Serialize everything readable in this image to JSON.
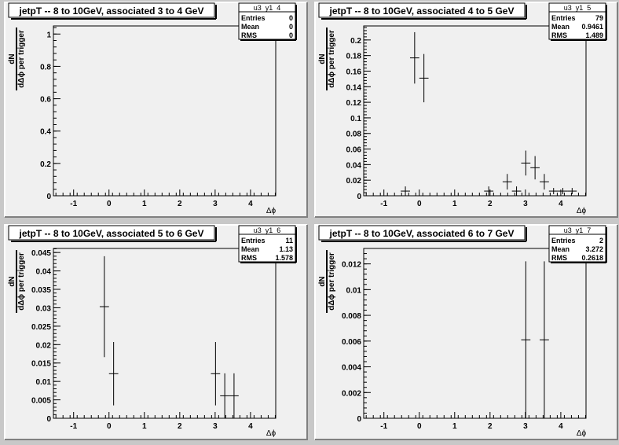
{
  "chart_data": [
    {
      "type": "scatter",
      "title": "jetpT -- 8 to 10GeV, associated 3 to 4 GeV",
      "xlabel": "Δϕ",
      "ylabel_num": "dN",
      "ylabel_den": "dΔϕ per trigger",
      "xlim": [
        -1.5708,
        4.7124
      ],
      "ylim": [
        0,
        1.05
      ],
      "xticks": [
        -1,
        0,
        1,
        2,
        3,
        4
      ],
      "yticks": [
        0,
        0.2,
        0.4,
        0.6,
        0.8,
        1
      ],
      "stats": {
        "name": "u3_y1_4",
        "entries": "0",
        "mean": "0",
        "rms": "0"
      },
      "bin_width": 0.2618,
      "points": []
    },
    {
      "type": "scatter",
      "title": "jetpT -- 8 to 10GeV, associated 4 to 5 GeV",
      "xlabel": "Δϕ",
      "ylabel_num": "dN",
      "ylabel_den": "dΔϕ per trigger",
      "xlim": [
        -1.5708,
        4.7124
      ],
      "ylim": [
        0,
        0.218
      ],
      "xticks": [
        -1,
        0,
        1,
        2,
        3,
        4
      ],
      "yticks": [
        0,
        0.02,
        0.04,
        0.06,
        0.08,
        0.1,
        0.12,
        0.14,
        0.16,
        0.18,
        0.2
      ],
      "stats": {
        "name": "u3_y1_5",
        "entries": "79",
        "mean": "0.9461",
        "rms": "1.489"
      },
      "bin_width": 0.2618,
      "points": [
        {
          "x": -0.393,
          "y": 0.006,
          "err": 0.006
        },
        {
          "x": -0.131,
          "y": 0.177,
          "err": 0.033
        },
        {
          "x": 0.131,
          "y": 0.151,
          "err": 0.031
        },
        {
          "x": 1.963,
          "y": 0.006,
          "err": 0.006
        },
        {
          "x": 2.487,
          "y": 0.018,
          "err": 0.01
        },
        {
          "x": 2.749,
          "y": 0.006,
          "err": 0.006
        },
        {
          "x": 3.011,
          "y": 0.042,
          "err": 0.016
        },
        {
          "x": 3.272,
          "y": 0.036,
          "err": 0.015
        },
        {
          "x": 3.534,
          "y": 0.018,
          "err": 0.01
        },
        {
          "x": 3.796,
          "y": 0.006,
          "err": 0.004
        },
        {
          "x": 4.058,
          "y": 0.006,
          "err": 0.004
        },
        {
          "x": 4.32,
          "y": 0.006,
          "err": 0.004
        }
      ]
    },
    {
      "type": "scatter",
      "title": "jetpT -- 8 to 10GeV, associated 5 to 6 GeV",
      "xlabel": "Δϕ",
      "ylabel_num": "dN",
      "ylabel_den": "dΔϕ per trigger",
      "xlim": [
        -1.5708,
        4.7124
      ],
      "ylim": [
        0,
        0.0461
      ],
      "xticks": [
        -1,
        0,
        1,
        2,
        3,
        4
      ],
      "yticks": [
        0,
        0.005,
        0.01,
        0.015,
        0.02,
        0.025,
        0.03,
        0.035,
        0.04,
        0.045
      ],
      "stats": {
        "name": "u3_y1_6",
        "entries": "11",
        "mean": "1.13",
        "rms": "1.578"
      },
      "bin_width": 0.2618,
      "points": [
        {
          "x": -0.131,
          "y": 0.0303,
          "err": 0.0137
        },
        {
          "x": 0.131,
          "y": 0.0121,
          "err": 0.0086
        },
        {
          "x": 3.011,
          "y": 0.0121,
          "err": 0.0086
        },
        {
          "x": 3.272,
          "y": 0.0061,
          "err": 0.0061
        },
        {
          "x": 3.534,
          "y": 0.0061,
          "err": 0.0061
        }
      ]
    },
    {
      "type": "scatter",
      "title": "jetpT -- 8 to 10GeV, associated 6 to 7 GeV",
      "xlabel": "Δϕ",
      "ylabel_num": "dN",
      "ylabel_den": "dΔϕ per trigger",
      "xlim": [
        -1.5708,
        4.7124
      ],
      "ylim": [
        0,
        0.0132
      ],
      "xticks": [
        -1,
        0,
        1,
        2,
        3,
        4
      ],
      "yticks": [
        0,
        0.002,
        0.004,
        0.006,
        0.008,
        0.01,
        0.012
      ],
      "stats": {
        "name": "u3_y1_7",
        "entries": "2",
        "mean": "3.272",
        "rms": "0.2618"
      },
      "bin_width": 0.2618,
      "points": [
        {
          "x": 3.011,
          "y": 0.0061,
          "err": 0.0061
        },
        {
          "x": 3.534,
          "y": 0.0061,
          "err": 0.0061
        }
      ]
    }
  ],
  "labels": {
    "entries": "Entries",
    "mean": "Mean",
    "rms": "RMS"
  },
  "colors": {
    "canvas": "#c8c8c8",
    "pad": "#f0f0f0",
    "ink": "#000000"
  }
}
